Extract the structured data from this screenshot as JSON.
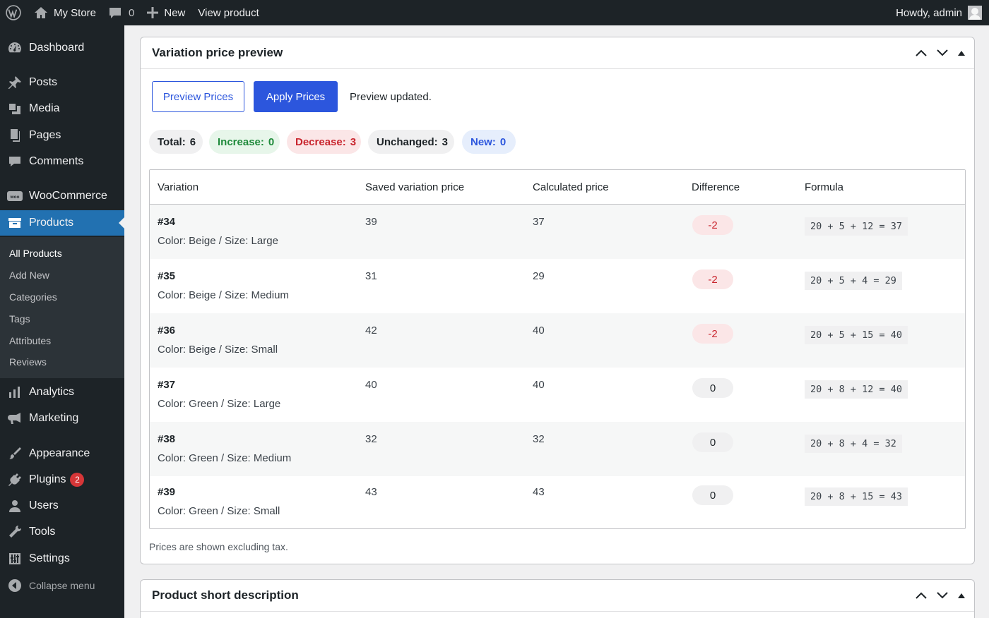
{
  "adminbar": {
    "site_name": "My Store",
    "comments_count": "0",
    "new_label": "New",
    "view_label": "View product",
    "greeting": "Howdy, admin"
  },
  "sidebar": {
    "items": [
      {
        "label": "Dashboard",
        "icon": "dashboard-icon"
      },
      {
        "label": "Posts",
        "icon": "pin-icon"
      },
      {
        "label": "Media",
        "icon": "media-icon"
      },
      {
        "label": "Pages",
        "icon": "pages-icon"
      },
      {
        "label": "Comments",
        "icon": "comment-icon"
      },
      {
        "label": "WooCommerce",
        "icon": "woo-icon"
      },
      {
        "label": "Products",
        "icon": "archive-icon"
      },
      {
        "label": "Analytics",
        "icon": "bar-chart-icon"
      },
      {
        "label": "Marketing",
        "icon": "megaphone-icon"
      },
      {
        "label": "Appearance",
        "icon": "brush-icon"
      },
      {
        "label": "Plugins",
        "icon": "plug-icon",
        "badge": "2"
      },
      {
        "label": "Users",
        "icon": "user-icon"
      },
      {
        "label": "Tools",
        "icon": "wrench-icon"
      },
      {
        "label": "Settings",
        "icon": "settings-icon"
      }
    ],
    "products_submenu": [
      "All Products",
      "Add New",
      "Categories",
      "Tags",
      "Attributes",
      "Reviews"
    ],
    "collapse_label": "Collapse menu"
  },
  "panel": {
    "title": "Variation price preview",
    "preview_button": "Preview Prices",
    "apply_button": "Apply Prices",
    "status": "Preview updated.",
    "summary": {
      "total_label": "Total:",
      "total": "6",
      "increase_label": "Increase:",
      "increase": "0",
      "decrease_label": "Decrease:",
      "decrease": "3",
      "unchanged_label": "Unchanged:",
      "unchanged": "3",
      "new_label": "New:",
      "new": "0"
    },
    "columns": [
      "Variation",
      "Saved variation price",
      "Calculated price",
      "Difference",
      "Formula"
    ],
    "rows": [
      {
        "id": "#34",
        "attrs": "Color: Beige / Size: Large",
        "saved": "39",
        "calculated": "37",
        "difference": "-2",
        "formula": "20 + 5 + 12 = 37"
      },
      {
        "id": "#35",
        "attrs": "Color: Beige / Size: Medium",
        "saved": "31",
        "calculated": "29",
        "difference": "-2",
        "formula": "20 + 5 + 4 = 29"
      },
      {
        "id": "#36",
        "attrs": "Color: Beige / Size: Small",
        "saved": "42",
        "calculated": "40",
        "difference": "-2",
        "formula": "20 + 5 + 15 = 40"
      },
      {
        "id": "#37",
        "attrs": "Color: Green / Size: Large",
        "saved": "40",
        "calculated": "40",
        "difference": "0",
        "formula": "20 + 8 + 12 = 40"
      },
      {
        "id": "#38",
        "attrs": "Color: Green / Size: Medium",
        "saved": "32",
        "calculated": "32",
        "difference": "0",
        "formula": "20 + 8 + 4 = 32"
      },
      {
        "id": "#39",
        "attrs": "Color: Green / Size: Small",
        "saved": "43",
        "calculated": "43",
        "difference": "0",
        "formula": "20 + 8 + 15 = 43"
      }
    ],
    "footnote": "Prices are shown excluding tax."
  },
  "panel2": {
    "title": "Product short description"
  },
  "colors": {
    "primary": "#2c56dd",
    "sidebar_bg": "#1d2327",
    "current_menu": "#2271b1",
    "negative": "#c9252e",
    "positive": "#1f8a3b"
  }
}
